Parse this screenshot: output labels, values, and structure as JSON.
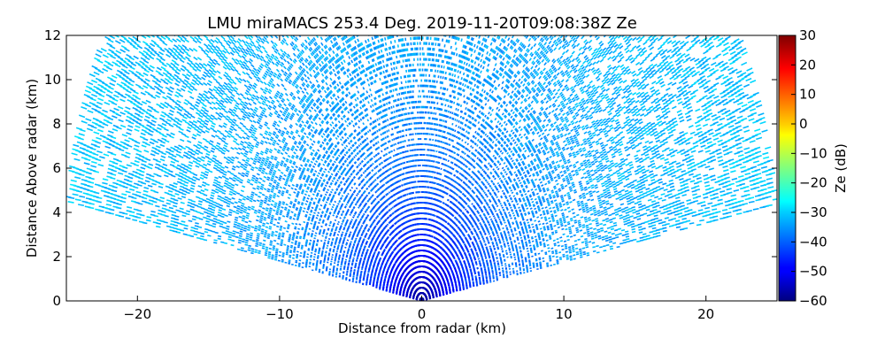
{
  "chart_data": {
    "type": "heatmap",
    "title": "LMU miraMACS 253.4 Deg. 2019-11-20T09:08:38Z  Ze",
    "xlabel": "Distance from radar (km)",
    "ylabel": "Distance Above radar  (km)",
    "xlim": [
      -25,
      25
    ],
    "ylim": [
      0,
      12
    ],
    "x_ticks": [
      -20,
      -10,
      0,
      10,
      20
    ],
    "y_ticks": [
      0,
      2,
      4,
      6,
      8,
      10,
      12
    ],
    "colorbar": {
      "label": "Ze (dB)",
      "range": [
        -60,
        30
      ],
      "ticks": [
        -60,
        -50,
        -40,
        -30,
        -20,
        -10,
        0,
        10,
        20,
        30
      ],
      "colormap": "jet"
    },
    "scan": {
      "max_range_km": 25.5,
      "elevation_min_deg": 10,
      "elevation_max_deg": 170
    },
    "reflectivity_profile": [
      {
        "range_km": 0.5,
        "ze_db": -56
      },
      {
        "range_km": 1.5,
        "ze_db": -51
      },
      {
        "range_km": 3,
        "ze_db": -45
      },
      {
        "range_km": 6,
        "ze_db": -39
      },
      {
        "range_km": 10,
        "ze_db": -35
      },
      {
        "range_km": 15,
        "ze_db": -33
      },
      {
        "range_km": 25,
        "ze_db": -31
      }
    ]
  }
}
